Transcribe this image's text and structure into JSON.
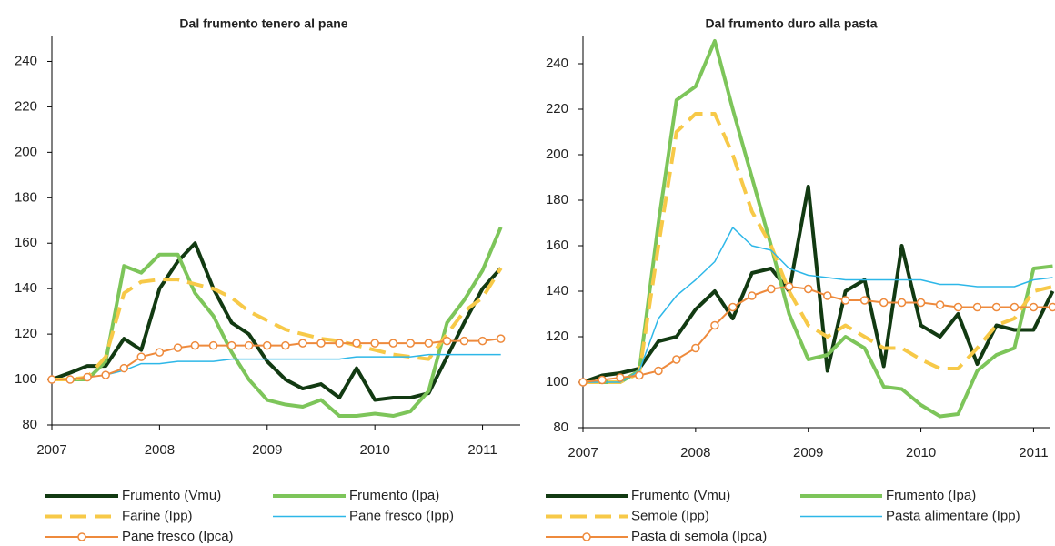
{
  "chart_data": [
    {
      "type": "line",
      "title": "Dal frumento tenero al pane",
      "x": [
        2007,
        2007.17,
        2007.33,
        2007.5,
        2007.67,
        2007.83,
        2008,
        2008.17,
        2008.33,
        2008.5,
        2008.67,
        2008.83,
        2009,
        2009.17,
        2009.33,
        2009.5,
        2009.67,
        2009.83,
        2010,
        2010.17,
        2010.33,
        2010.5,
        2010.67,
        2010.83,
        2011,
        2011.17
      ],
      "xlim": [
        2007,
        2011.35
      ],
      "xticks": [
        2007,
        2008,
        2009,
        2010,
        2011
      ],
      "ylim": [
        80,
        251
      ],
      "yticks": [
        80,
        100,
        120,
        140,
        160,
        180,
        200,
        220,
        240
      ],
      "series": [
        {
          "name": "Frumento (Vmu)",
          "color": "#123a12",
          "width": 4,
          "values": [
            100,
            103,
            106,
            106,
            118,
            113,
            140,
            152,
            160,
            140,
            125,
            120,
            108,
            100,
            96,
            98,
            92,
            105,
            91,
            92,
            92,
            94,
            110,
            125,
            140,
            149
          ]
        },
        {
          "name": "Frumento  (Ipa)",
          "color": "#7dc55a",
          "width": 4,
          "values": [
            100,
            100,
            100,
            108,
            150,
            147,
            155,
            155,
            138,
            128,
            112,
            100,
            91,
            89,
            88,
            91,
            84,
            84,
            85,
            84,
            86,
            95,
            125,
            135,
            148,
            167
          ]
        },
        {
          "name": "Farine (Ipp)",
          "color": "#f7c948",
          "width": 4,
          "dash": true,
          "values": [
            100,
            100,
            101,
            110,
            138,
            143,
            144,
            144,
            142,
            140,
            136,
            130,
            126,
            122,
            120,
            118,
            117,
            115,
            113,
            111,
            110,
            109,
            120,
            130,
            136,
            149
          ]
        },
        {
          "name": "Pane fresco (Ipp)",
          "color": "#2db7e8",
          "width": 1.5,
          "values": [
            100,
            100,
            101,
            102,
            104,
            107,
            107,
            108,
            108,
            108,
            109,
            109,
            109,
            109,
            109,
            109,
            109,
            110,
            110,
            110,
            110,
            111,
            111,
            111,
            111,
            111
          ]
        },
        {
          "name": "Pane fresco (Ipca)",
          "color": "#ee8a3c",
          "width": 2,
          "marker": "circle",
          "values": [
            100,
            100,
            101,
            102,
            105,
            110,
            112,
            114,
            115,
            115,
            115,
            115,
            115,
            115,
            116,
            116,
            116,
            116,
            116,
            116,
            116,
            116,
            117,
            117,
            117,
            118
          ]
        }
      ]
    },
    {
      "type": "line",
      "title": "Dal frumento duro alla pasta",
      "x": [
        2007,
        2007.17,
        2007.33,
        2007.5,
        2007.67,
        2007.83,
        2008,
        2008.17,
        2008.33,
        2008.5,
        2008.67,
        2008.83,
        2009,
        2009.17,
        2009.33,
        2009.5,
        2009.67,
        2009.83,
        2010,
        2010.17,
        2010.33,
        2010.5,
        2010.67,
        2010.83,
        2011,
        2011.17
      ],
      "xlim": [
        2007,
        2011.15
      ],
      "xticks": [
        2007,
        2008,
        2009,
        2010,
        2011
      ],
      "ylim": [
        80,
        252
      ],
      "yticks": [
        80,
        100,
        120,
        140,
        160,
        180,
        200,
        220,
        240
      ],
      "series": [
        {
          "name": "Frumento (Vmu)",
          "color": "#123a12",
          "width": 4,
          "values": [
            100,
            103,
            104,
            106,
            118,
            120,
            132,
            140,
            128,
            148,
            150,
            140,
            186,
            105,
            140,
            145,
            107,
            160,
            125,
            120,
            130,
            108,
            125,
            123,
            123,
            140
          ]
        },
        {
          "name": "Frumento  (Ipa)",
          "color": "#7dc55a",
          "width": 4,
          "values": [
            100,
            100,
            100,
            105,
            170,
            224,
            230,
            250,
            220,
            190,
            160,
            130,
            110,
            112,
            120,
            115,
            98,
            97,
            90,
            85,
            86,
            105,
            112,
            115,
            150,
            151
          ]
        },
        {
          "name": "Semole (Ipp)",
          "color": "#f7c948",
          "width": 4,
          "dash": true,
          "values": [
            100,
            100,
            100,
            104,
            160,
            210,
            218,
            218,
            200,
            175,
            160,
            140,
            125,
            120,
            125,
            120,
            115,
            115,
            110,
            106,
            106,
            115,
            125,
            128,
            140,
            142
          ]
        },
        {
          "name": "Pasta alimentare (Ipp)",
          "color": "#2db7e8",
          "width": 1.5,
          "values": [
            100,
            100,
            100,
            105,
            128,
            138,
            145,
            153,
            168,
            160,
            158,
            150,
            147,
            146,
            145,
            145,
            145,
            145,
            145,
            143,
            143,
            142,
            142,
            142,
            145,
            146
          ]
        },
        {
          "name": "Pasta di semola (Ipca)",
          "color": "#ee8a3c",
          "width": 2,
          "marker": "circle",
          "values": [
            100,
            101,
            102,
            103,
            105,
            110,
            115,
            125,
            133,
            138,
            141,
            142,
            141,
            138,
            136,
            136,
            135,
            135,
            135,
            134,
            133,
            133,
            133,
            133,
            133,
            133
          ]
        }
      ]
    }
  ]
}
